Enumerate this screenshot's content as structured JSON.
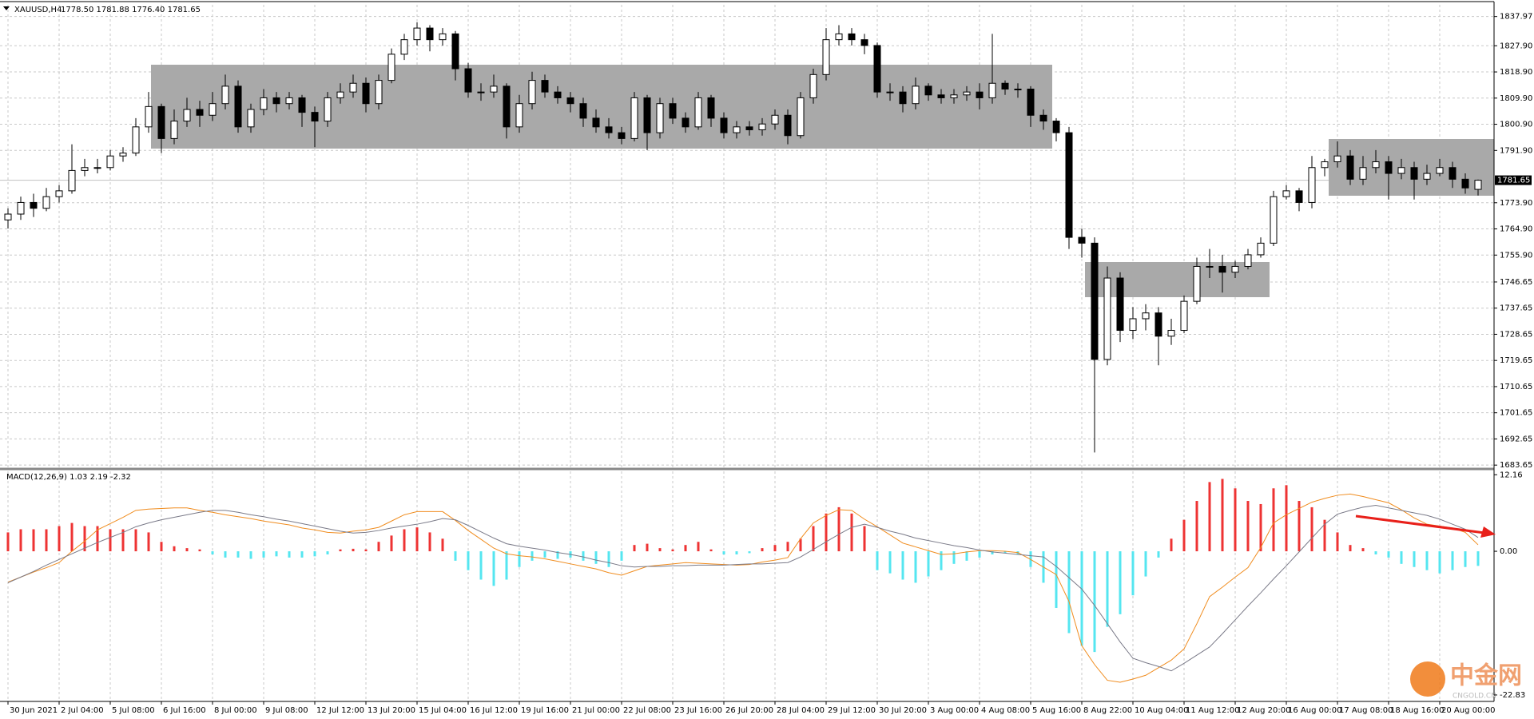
{
  "chart_data": {
    "type": "candlestick",
    "title": "XAUUSD,H4",
    "subtitle": "1778.50 1781.88 1776.40 1781.65",
    "up_color": "#ffffff",
    "down_color": "#000000",
    "outline_color": "#000000",
    "ylim": [
      1682.6,
      1842.0
    ],
    "yticks": [
      1837.97,
      {
        "value": 1827.9,
        "label": "1827.90"
      },
      {
        "value": 1818.9,
        "label": "1818.90"
      },
      {
        "value": 1809.9,
        "label": "1809.90"
      },
      {
        "value": 1800.9,
        "label": "1800.90"
      },
      {
        "value": 1791.9,
        "label": "1791.90"
      },
      {
        "value": 1773.9,
        "label": "1773.90"
      },
      {
        "value": 1764.9,
        "label": "1764.90"
      },
      {
        "value": 1755.9,
        "label": "1755.90"
      },
      1746.65,
      1737.65,
      1728.65,
      1719.65,
      1710.65,
      1701.65,
      1692.65,
      1683.65
    ],
    "current_price": 1781.65,
    "grid": true,
    "x_labels": [
      "30 Jun 2021",
      "2 Jul 04:00",
      "5 Jul 08:00",
      "6 Jul 16:00",
      "8 Jul 00:00",
      "9 Jul 08:00",
      "12 Jul 12:00",
      "13 Jul 20:00",
      "15 Jul 04:00",
      "16 Jul 12:00",
      "19 Jul 16:00",
      "21 Jul 00:00",
      "22 Jul 08:00",
      "23 Jul 16:00",
      "26 Jul 20:00",
      "28 Jul 04:00",
      "29 Jul 12:00",
      "30 Jul 20:00",
      "3 Aug 00:00",
      "4 Aug 08:00",
      "5 Aug 16:00",
      "8 Aug 22:00",
      "10 Aug 04:00",
      "11 Aug 12:00",
      "12 Aug 20:00",
      "16 Aug 00:00",
      "17 Aug 08:00",
      "18 Aug 16:00",
      "20 Aug 00:00"
    ],
    "ohlc": [
      [
        1768,
        1772,
        1765,
        1770
      ],
      [
        1770,
        1776,
        1768,
        1774
      ],
      [
        1774,
        1777,
        1769,
        1772
      ],
      [
        1772,
        1779,
        1771,
        1776
      ],
      [
        1776,
        1780,
        1774,
        1778
      ],
      [
        1778,
        1794,
        1777,
        1785
      ],
      [
        1785,
        1789,
        1783,
        1786
      ],
      [
        1786,
        1789,
        1784,
        1786
      ],
      [
        1786,
        1792,
        1785,
        1790
      ],
      [
        1790,
        1793,
        1788,
        1791
      ],
      [
        1791,
        1803,
        1790,
        1800
      ],
      [
        1800,
        1812,
        1798,
        1807
      ],
      [
        1807,
        1808,
        1791,
        1796
      ],
      [
        1796,
        1806,
        1794,
        1802
      ],
      [
        1802,
        1810,
        1800,
        1806
      ],
      [
        1806,
        1809,
        1800,
        1804
      ],
      [
        1804,
        1812,
        1802,
        1808
      ],
      [
        1808,
        1818,
        1806,
        1814
      ],
      [
        1814,
        1816,
        1798,
        1800
      ],
      [
        1800,
        1808,
        1798,
        1806
      ],
      [
        1806,
        1813,
        1804,
        1810
      ],
      [
        1810,
        1812,
        1805,
        1808
      ],
      [
        1808,
        1812,
        1806,
        1810
      ],
      [
        1810,
        1811,
        1800,
        1805
      ],
      [
        1805,
        1807,
        1793,
        1802
      ],
      [
        1802,
        1812,
        1800,
        1810
      ],
      [
        1810,
        1815,
        1808,
        1812
      ],
      [
        1812,
        1818,
        1810,
        1815
      ],
      [
        1815,
        1817,
        1805,
        1808
      ],
      [
        1808,
        1818,
        1806,
        1816
      ],
      [
        1816,
        1827,
        1815,
        1825
      ],
      [
        1825,
        1832,
        1823,
        1830
      ],
      [
        1830,
        1836,
        1828,
        1834
      ],
      [
        1834,
        1835,
        1826,
        1830
      ],
      [
        1830,
        1834,
        1828,
        1832
      ],
      [
        1832,
        1833,
        1816,
        1820
      ],
      [
        1820,
        1822,
        1810,
        1812
      ],
      [
        1812,
        1815,
        1809,
        1812
      ],
      [
        1812,
        1818,
        1810,
        1814
      ],
      [
        1814,
        1815,
        1796,
        1800
      ],
      [
        1800,
        1811,
        1798,
        1808
      ],
      [
        1808,
        1819,
        1806,
        1816
      ],
      [
        1816,
        1818,
        1810,
        1812
      ],
      [
        1812,
        1814,
        1808,
        1810
      ],
      [
        1810,
        1812,
        1805,
        1808
      ],
      [
        1808,
        1810,
        1800,
        1803
      ],
      [
        1803,
        1806,
        1798,
        1800
      ],
      [
        1800,
        1803,
        1796,
        1798
      ],
      [
        1798,
        1800,
        1794,
        1796
      ],
      [
        1796,
        1812,
        1795,
        1810
      ],
      [
        1810,
        1811,
        1792,
        1798
      ],
      [
        1798,
        1810,
        1796,
        1808
      ],
      [
        1808,
        1810,
        1801,
        1803
      ],
      [
        1803,
        1805,
        1798,
        1800
      ],
      [
        1800,
        1812,
        1799,
        1810
      ],
      [
        1810,
        1811,
        1800,
        1803
      ],
      [
        1803,
        1805,
        1796,
        1798
      ],
      [
        1798,
        1802,
        1796,
        1800
      ],
      [
        1800,
        1802,
        1797,
        1799
      ],
      [
        1799,
        1803,
        1797,
        1801
      ],
      [
        1801,
        1806,
        1799,
        1804
      ],
      [
        1804,
        1806,
        1794,
        1797
      ],
      [
        1797,
        1812,
        1796,
        1810
      ],
      [
        1810,
        1820,
        1808,
        1818
      ],
      [
        1818,
        1834,
        1816,
        1830
      ],
      [
        1830,
        1835,
        1828,
        1832
      ],
      [
        1832,
        1834,
        1828,
        1830
      ],
      [
        1830,
        1832,
        1825,
        1828
      ],
      [
        1828,
        1829,
        1810,
        1812
      ],
      [
        1812,
        1815,
        1809,
        1812
      ],
      [
        1812,
        1814,
        1805,
        1808
      ],
      [
        1808,
        1817,
        1806,
        1814
      ],
      [
        1814,
        1815,
        1809,
        1811
      ],
      [
        1811,
        1813,
        1808,
        1810
      ],
      [
        1810,
        1813,
        1808,
        1811
      ],
      [
        1811,
        1814,
        1809,
        1812
      ],
      [
        1812,
        1815,
        1806,
        1810
      ],
      [
        1810,
        1832,
        1808,
        1815
      ],
      [
        1815,
        1816,
        1811,
        1813
      ],
      [
        1813,
        1815,
        1810,
        1813
      ],
      [
        1813,
        1814,
        1800,
        1804
      ],
      [
        1804,
        1806,
        1799,
        1802
      ],
      [
        1802,
        1803,
        1795,
        1798
      ],
      [
        1798,
        1800,
        1758,
        1762
      ],
      [
        1762,
        1765,
        1755,
        1760
      ],
      [
        1760,
        1762,
        1688,
        1720
      ],
      [
        1720,
        1752,
        1718,
        1748
      ],
      [
        1748,
        1750,
        1726,
        1730
      ],
      [
        1730,
        1738,
        1727,
        1734
      ],
      [
        1734,
        1739,
        1730,
        1736
      ],
      [
        1736,
        1738,
        1718,
        1728
      ],
      [
        1728,
        1734,
        1725,
        1730
      ],
      [
        1730,
        1742,
        1729,
        1740
      ],
      [
        1740,
        1755,
        1739,
        1752
      ],
      [
        1752,
        1758,
        1748,
        1752
      ],
      [
        1752,
        1756,
        1743,
        1750
      ],
      [
        1750,
        1754,
        1748,
        1752
      ],
      [
        1752,
        1758,
        1751,
        1756
      ],
      [
        1756,
        1762,
        1755,
        1760
      ],
      [
        1760,
        1778,
        1759,
        1776
      ],
      [
        1776,
        1780,
        1775,
        1778
      ],
      [
        1778,
        1779,
        1771,
        1774
      ],
      [
        1774,
        1790,
        1772,
        1786
      ],
      [
        1786,
        1789,
        1783,
        1788
      ],
      [
        1788,
        1795,
        1786,
        1790
      ],
      [
        1790,
        1792,
        1780,
        1782
      ],
      [
        1782,
        1790,
        1780,
        1786
      ],
      [
        1786,
        1792,
        1784,
        1788
      ],
      [
        1788,
        1790,
        1775,
        1784
      ],
      [
        1784,
        1789,
        1782,
        1786
      ],
      [
        1786,
        1788,
        1775,
        1782
      ],
      [
        1782,
        1787,
        1780,
        1784
      ],
      [
        1784,
        1789,
        1783,
        1786
      ],
      [
        1786,
        1788,
        1779,
        1782
      ],
      [
        1782,
        1784,
        1777,
        1779
      ],
      [
        1778.5,
        1781.88,
        1776.4,
        1781.65
      ]
    ],
    "macd": {
      "title": "MACD(12,26,9) 1.03 2.19 -2.32",
      "ylim": [
        -23.6,
        12.7
      ],
      "yticks": [
        12.16,
        {
          "value": 0,
          "label": "0.00"
        },
        -22.83
      ],
      "pos_color": "#ee3333",
      "neg_color": "#55e6f0",
      "histogram": [
        3,
        3.5,
        3.5,
        3.5,
        4,
        4.5,
        4,
        4,
        3.5,
        3.5,
        3.5,
        3,
        1.5,
        0.8,
        0.5,
        0.3,
        -0.5,
        -1,
        -1,
        -1.2,
        -1,
        -0.8,
        -1,
        -1,
        -0.8,
        -0.5,
        0.3,
        0.4,
        0.3,
        1.5,
        2.5,
        3.5,
        3.8,
        3,
        2,
        -1.5,
        -3,
        -4.5,
        -5.5,
        -4.5,
        -2.5,
        -1.5,
        -1,
        -1.2,
        -1,
        -1.5,
        -2,
        -2.5,
        -1.5,
        1,
        1.2,
        0.5,
        0.3,
        1,
        1.5,
        0.3,
        -0.5,
        -0.5,
        -0.3,
        0.5,
        1,
        1.5,
        2,
        4,
        6,
        7,
        6,
        4,
        -3,
        -3.5,
        -4.5,
        -5,
        -4,
        -3,
        -2,
        -1.5,
        -1,
        -0.5,
        -0.3,
        -0.5,
        -2.5,
        -5,
        -9,
        -13,
        -15,
        -16,
        -12,
        -10,
        -7,
        -4,
        -1,
        2,
        5,
        8,
        11,
        11.5,
        10,
        8,
        7.5,
        10,
        10.5,
        8,
        7,
        5,
        3,
        1,
        0.5,
        -0.5,
        -1,
        -2,
        -2.5,
        -3,
        -3.5,
        -3,
        -2.5,
        -2.32
      ],
      "lines": [
        {
          "color": "#f08c1e",
          "values": [
            -4.9,
            -4.1,
            -3.3,
            -2.6,
            -1.8,
            0,
            1.6,
            3.4,
            4.4,
            5.4,
            6.5,
            6.7,
            6.8,
            6.9,
            6.9,
            6.5,
            6.2,
            5.8,
            5.5,
            5.2,
            4.8,
            4.5,
            4.2,
            3.7,
            3.4,
            3.0,
            2.9,
            3.2,
            3.4,
            3.8,
            4.8,
            5.8,
            6.3,
            6.3,
            6.3,
            4.9,
            3.3,
            1.9,
            0.5,
            -0.4,
            -0.7,
            -0.9,
            -1.2,
            -1.6,
            -2.0,
            -2.4,
            -2.8,
            -3.4,
            -3.8,
            -3.1,
            -2.4,
            -2.2,
            -2.0,
            -1.8,
            -1.9,
            -2.0,
            -2.1,
            -2.2,
            -2.1,
            -1.7,
            -1.4,
            -1.0,
            2.0,
            4.5,
            5.7,
            6.6,
            6.5,
            5.1,
            3.9,
            2.6,
            1.3,
            0.7,
            0.1,
            -0.5,
            -0.4,
            -0.1,
            0.1,
            0.1,
            0,
            -0.2,
            -1.3,
            -2.5,
            -3.7,
            -8,
            -15,
            -18,
            -20.5,
            -20.8,
            -20.3,
            -19.7,
            -18.5,
            -17.3,
            -15.5,
            -11.5,
            -7.2,
            -5.7,
            -4.1,
            -2.6,
            0.6,
            4.5,
            5.8,
            6.8,
            7.8,
            8.4,
            8.9,
            9.1,
            8.7,
            8.2,
            7.7,
            6.6,
            5.3,
            4.3,
            4.0,
            3.7,
            3.0,
            1.03
          ]
        },
        {
          "color": "#7a7a88",
          "values": [
            -5,
            -4.1,
            -3.2,
            -2.2,
            -1.3,
            -0.4,
            0.5,
            1.4,
            2.2,
            3.0,
            3.9,
            4.5,
            5.0,
            5.4,
            5.8,
            6.2,
            6.5,
            6.5,
            6.2,
            5.8,
            5.5,
            5.1,
            4.8,
            4.4,
            4.0,
            3.6,
            3.2,
            2.9,
            3.0,
            3.3,
            3.7,
            4.0,
            4.3,
            4.7,
            5.2,
            5.0,
            4.1,
            3.1,
            2.1,
            1.2,
            0.8,
            0.5,
            0.2,
            -0.2,
            -0.5,
            -0.9,
            -1.4,
            -1.8,
            -2.3,
            -2.5,
            -2.4,
            -2.4,
            -2.3,
            -2.3,
            -2.2,
            -2.2,
            -2.2,
            -2.1,
            -2.0,
            -2.0,
            -1.9,
            -1.8,
            -0.9,
            0.3,
            1.5,
            2.7,
            3.8,
            4.3,
            3.8,
            3.2,
            2.7,
            2.1,
            1.7,
            1.3,
            0.9,
            0.6,
            0.2,
            -0.1,
            -0.3,
            -0.5,
            -0.7,
            -0.9,
            -2.4,
            -4.2,
            -6,
            -8.6,
            -11.5,
            -14.4,
            -17,
            -17.7,
            -18.3,
            -19,
            -17.8,
            -16.5,
            -15.2,
            -13.1,
            -10.9,
            -8.7,
            -6.6,
            -4.4,
            -2.3,
            -0.1,
            2.1,
            4.3,
            5.9,
            6.5,
            7.0,
            7.3,
            6.9,
            6.5,
            6.1,
            5.7,
            5.1,
            4.3,
            3.5,
            2.19
          ]
        }
      ]
    }
  },
  "watermark": {
    "title": "中金网",
    "subtitle": "CNGOLD.CN"
  }
}
